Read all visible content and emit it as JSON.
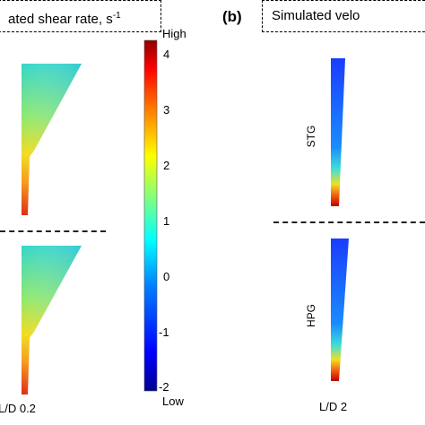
{
  "panel_a": {
    "title": "ated shear rate, s",
    "title_superscript": "-1",
    "bottom_label": "L/D 0.2"
  },
  "panel_b": {
    "label": "(b)",
    "title": "Simulated velo",
    "row_labels": [
      "STG",
      "HPG"
    ],
    "bottom_label": "L/D 2"
  },
  "colorbar": {
    "high_label": "High",
    "low_label": "Low",
    "ticks": [
      "4",
      "3",
      "2",
      "1",
      "0",
      "-1",
      "-2"
    ],
    "min": -2,
    "max": 4.3,
    "colors": [
      "#00008f",
      "#0000ff",
      "#007fff",
      "#00ffff",
      "#7fff7f",
      "#ffff00",
      "#ff7f00",
      "#ff0000",
      "#7f0000"
    ]
  }
}
